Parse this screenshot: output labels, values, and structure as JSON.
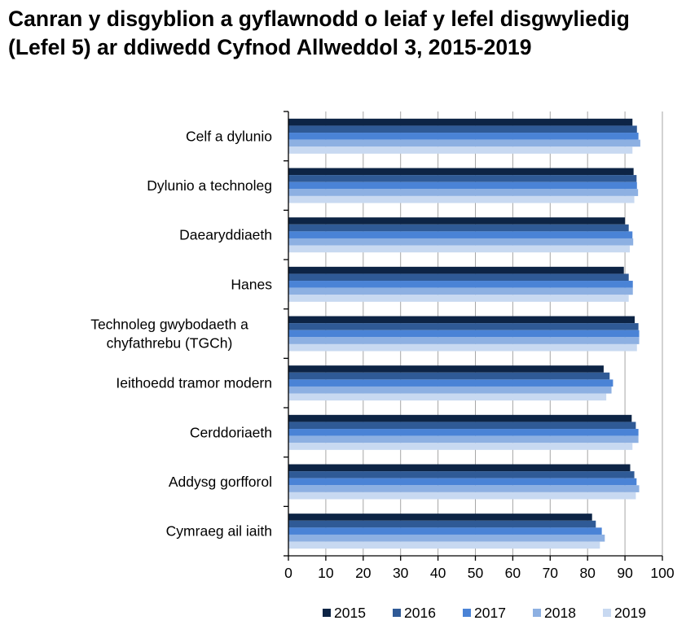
{
  "chart_data": {
    "type": "bar",
    "orientation": "horizontal",
    "title": "Canran y disgyblion a gyflawnodd o leiaf y lefel disgwyliedig (Lefel 5) ar ddiwedd Cyfnod Allweddol 3, 2015-2019",
    "xlabel": "",
    "ylabel": "",
    "xlim": [
      0,
      100
    ],
    "x_ticks": [
      0,
      10,
      20,
      30,
      40,
      50,
      60,
      70,
      80,
      90,
      100
    ],
    "grid": "vertical",
    "legend_position": "bottom",
    "categories": [
      [
        "Celf a dylunio"
      ],
      [
        "Dylunio a technoleg"
      ],
      [
        "Daearyddiaeth"
      ],
      [
        "Hanes"
      ],
      [
        "Technoleg gwybodaeth a",
        "chyfathrebu (TGCh)"
      ],
      [
        "Ieithoedd tramor modern"
      ],
      [
        "Cerddoriaeth"
      ],
      [
        "Addysg gorfforol"
      ],
      [
        "Cymraeg ail iaith"
      ]
    ],
    "series": [
      {
        "name": "2015",
        "color": "#0d2445",
        "values": [
          92.0,
          92.3,
          90.0,
          89.7,
          92.6,
          84.3,
          91.8,
          91.4,
          81.2
        ]
      },
      {
        "name": "2016",
        "color": "#2f5a96",
        "values": [
          93.2,
          93.1,
          91.0,
          91.0,
          93.6,
          85.9,
          92.9,
          92.5,
          82.2
        ]
      },
      {
        "name": "2017",
        "color": "#4a83d6",
        "values": [
          93.6,
          93.2,
          92.0,
          92.1,
          93.8,
          86.8,
          93.6,
          93.1,
          83.8
        ]
      },
      {
        "name": "2018",
        "color": "#8db0e2",
        "values": [
          94.1,
          93.5,
          92.2,
          92.1,
          93.8,
          86.4,
          93.6,
          93.8,
          84.6
        ]
      },
      {
        "name": "2019",
        "color": "#c8d9f1",
        "values": [
          92.0,
          92.5,
          91.3,
          91.0,
          93.2,
          85.0,
          92.0,
          92.9,
          83.3
        ]
      }
    ]
  }
}
